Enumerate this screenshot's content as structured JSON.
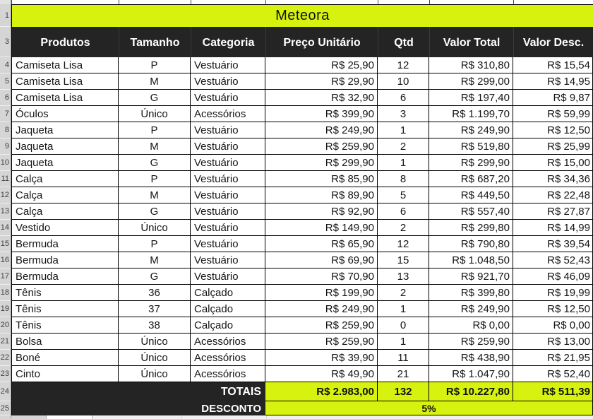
{
  "title": "Meteora",
  "columns": [
    "Produtos",
    "Tamanho",
    "Categoria",
    "Preço Unitário",
    "Qtd",
    "Valor Total",
    "Valor Desc."
  ],
  "rows": [
    {
      "produto": "Camiseta Lisa",
      "tamanho": "P",
      "categoria": "Vestuário",
      "preco": "R$ 25,90",
      "qtd": "12",
      "total": "R$ 310,80",
      "desc": "R$ 15,54"
    },
    {
      "produto": "Camiseta Lisa",
      "tamanho": "M",
      "categoria": "Vestuário",
      "preco": "R$ 29,90",
      "qtd": "10",
      "total": "R$ 299,00",
      "desc": "R$ 14,95"
    },
    {
      "produto": "Camiseta Lisa",
      "tamanho": "G",
      "categoria": "Vestuário",
      "preco": "R$ 32,90",
      "qtd": "6",
      "total": "R$ 197,40",
      "desc": "R$ 9,87"
    },
    {
      "produto": "Óculos",
      "tamanho": "Único",
      "categoria": "Acessórios",
      "preco": "R$ 399,90",
      "qtd": "3",
      "total": "R$ 1.199,70",
      "desc": "R$ 59,99"
    },
    {
      "produto": "Jaqueta",
      "tamanho": "P",
      "categoria": "Vestuário",
      "preco": "R$ 249,90",
      "qtd": "1",
      "total": "R$ 249,90",
      "desc": "R$ 12,50"
    },
    {
      "produto": "Jaqueta",
      "tamanho": "M",
      "categoria": "Vestuário",
      "preco": "R$ 259,90",
      "qtd": "2",
      "total": "R$ 519,80",
      "desc": "R$ 25,99"
    },
    {
      "produto": "Jaqueta",
      "tamanho": "G",
      "categoria": "Vestuário",
      "preco": "R$ 299,90",
      "qtd": "1",
      "total": "R$ 299,90",
      "desc": "R$ 15,00"
    },
    {
      "produto": "Calça",
      "tamanho": "P",
      "categoria": "Vestuário",
      "preco": "R$ 85,90",
      "qtd": "8",
      "total": "R$ 687,20",
      "desc": "R$ 34,36"
    },
    {
      "produto": "Calça",
      "tamanho": "M",
      "categoria": "Vestuário",
      "preco": "R$ 89,90",
      "qtd": "5",
      "total": "R$ 449,50",
      "desc": "R$ 22,48"
    },
    {
      "produto": "Calça",
      "tamanho": "G",
      "categoria": "Vestuário",
      "preco": "R$ 92,90",
      "qtd": "6",
      "total": "R$ 557,40",
      "desc": "R$ 27,87"
    },
    {
      "produto": "Vestido",
      "tamanho": "Único",
      "categoria": "Vestuário",
      "preco": "R$ 149,90",
      "qtd": "2",
      "total": "R$ 299,80",
      "desc": "R$ 14,99"
    },
    {
      "produto": "Bermuda",
      "tamanho": "P",
      "categoria": "Vestuário",
      "preco": "R$ 65,90",
      "qtd": "12",
      "total": "R$ 790,80",
      "desc": "R$ 39,54"
    },
    {
      "produto": "Bermuda",
      "tamanho": "M",
      "categoria": "Vestuário",
      "preco": "R$ 69,90",
      "qtd": "15",
      "total": "R$ 1.048,50",
      "desc": "R$ 52,43"
    },
    {
      "produto": "Bermuda",
      "tamanho": "G",
      "categoria": "Vestuário",
      "preco": "R$ 70,90",
      "qtd": "13",
      "total": "R$ 921,70",
      "desc": "R$ 46,09"
    },
    {
      "produto": "Tênis",
      "tamanho": "36",
      "categoria": "Calçado",
      "preco": "R$ 199,90",
      "qtd": "2",
      "total": "R$ 399,80",
      "desc": "R$ 19,99"
    },
    {
      "produto": "Tênis",
      "tamanho": "37",
      "categoria": "Calçado",
      "preco": "R$ 249,90",
      "qtd": "1",
      "total": "R$ 249,90",
      "desc": "R$ 12,50"
    },
    {
      "produto": "Tênis",
      "tamanho": "38",
      "categoria": "Calçado",
      "preco": "R$ 259,90",
      "qtd": "0",
      "total": "R$ 0,00",
      "desc": "R$ 0,00"
    },
    {
      "produto": "Bolsa",
      "tamanho": "Único",
      "categoria": "Acessórios",
      "preco": "R$ 259,90",
      "qtd": "1",
      "total": "R$ 259,90",
      "desc": "R$ 13,00"
    },
    {
      "produto": "Boné",
      "tamanho": "Único",
      "categoria": "Acessórios",
      "preco": "R$ 39,90",
      "qtd": "11",
      "total": "R$ 438,90",
      "desc": "R$ 21,95"
    },
    {
      "produto": "Cinto",
      "tamanho": "Único",
      "categoria": "Acessórios",
      "preco": "R$ 49,90",
      "qtd": "21",
      "total": "R$ 1.047,90",
      "desc": "R$ 52,40"
    }
  ],
  "totals": {
    "label": "TOTAIS",
    "preco": "R$ 2.983,00",
    "qtd": "132",
    "total": "R$ 10.227,80",
    "desc": "R$ 511,39"
  },
  "desconto": {
    "label": "DESCONTO",
    "value": "5%"
  },
  "gutter": {
    "title": "1",
    "header": "3",
    "data": [
      "4",
      "5",
      "6",
      "7",
      "8",
      "9",
      "10",
      "11",
      "12",
      "13",
      "14",
      "15",
      "16",
      "17",
      "18",
      "19",
      "20",
      "21",
      "22",
      "23"
    ],
    "totals": "24",
    "desconto": "25"
  },
  "colors": {
    "accent": "#d6f20e",
    "header_bg": "#242424"
  }
}
